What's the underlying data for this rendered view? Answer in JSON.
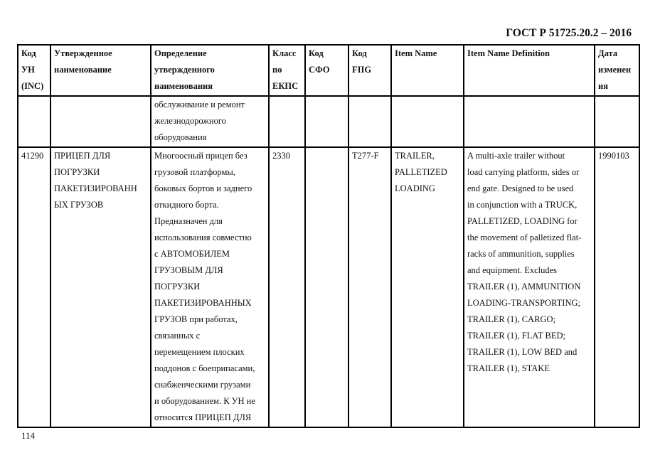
{
  "document_code": "ГОСТ Р 51725.20.2 – 2016",
  "page_number": "114",
  "table": {
    "headers": [
      [
        "Код",
        "УН",
        "(INC)"
      ],
      [
        "Утвержденное",
        "наименование"
      ],
      [
        "Определение",
        "утвержденного",
        "наименования"
      ],
      [
        "Класс",
        "по",
        "ЕКПС"
      ],
      [
        "Код",
        "СФО"
      ],
      [
        "Код",
        "FIIG"
      ],
      [
        "Item Name"
      ],
      [
        "Item Name Definition"
      ],
      [
        "Дата",
        "изменен",
        "ия"
      ]
    ],
    "rows": [
      [
        [],
        [],
        [
          "обслуживание и ремонт",
          "железнодорожного",
          "оборудования"
        ],
        [],
        [],
        [],
        [],
        [],
        []
      ],
      [
        [
          "41290"
        ],
        [
          "ПРИЦЕП ДЛЯ",
          "ПОГРУЗКИ",
          "ПАКЕТИЗИРОВАНН",
          "ЫХ ГРУЗОВ"
        ],
        [
          "Многоосный прицеп без",
          "грузовой платформы,",
          "боковых бортов и заднего",
          "откидного борта.",
          "Предназначен для",
          "использования совместно",
          "с АВТОМОБИЛЕМ",
          "ГРУЗОВЫМ ДЛЯ",
          "ПОГРУЗКИ",
          "ПАКЕТИЗИРОВАННЫХ",
          "ГРУЗОВ при работах,",
          "связанных с",
          "перемещением плоских",
          "поддонов с боеприпасами,",
          "снабженческими грузами",
          "и оборудованием. К УН не",
          "относится ПРИЦЕП ДЛЯ"
        ],
        [
          "2330"
        ],
        [],
        [
          "T277-F"
        ],
        [
          "TRAILER,",
          "PALLETIZED",
          "LOADING"
        ],
        [
          "A multi-axle trailer without",
          "load carrying platform, sides or",
          "end gate. Designed to be used",
          "in conjunction with a TRUCK,",
          "PALLETIZED, LOADING for",
          "the movement of palletized flat-",
          "racks of ammunition, supplies",
          "and equipment. Excludes",
          "TRAILER (1), AMMUNITION",
          "LOADING-TRANSPORTING;",
          "TRAILER (1), CARGO;",
          "TRAILER (1), FLAT BED;",
          "TRAILER (1), LOW BED and",
          "TRAILER (1), STAKE"
        ],
        [
          "1990103"
        ]
      ]
    ]
  }
}
